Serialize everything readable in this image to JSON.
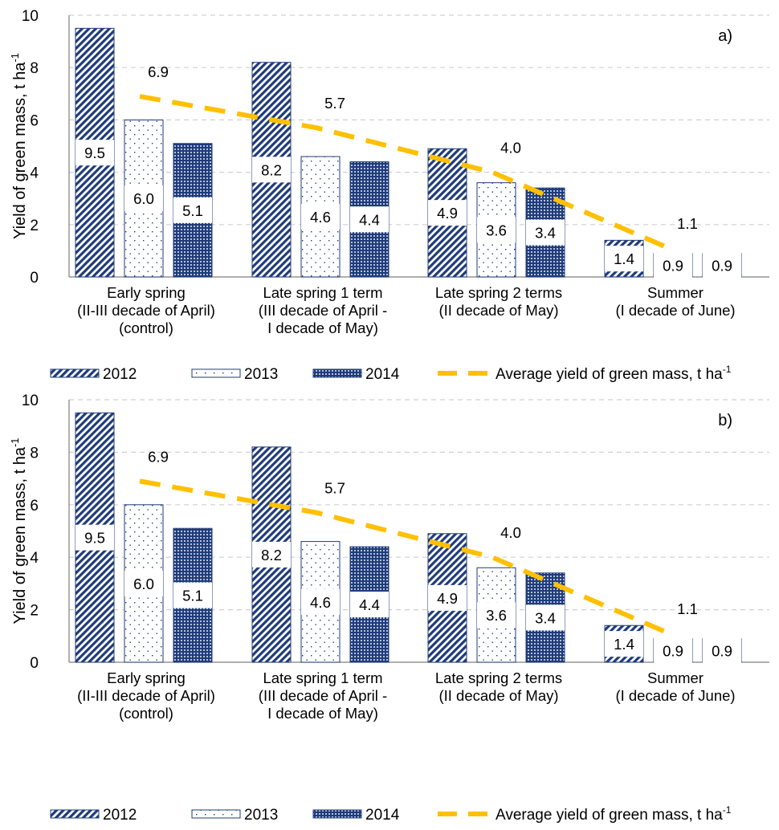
{
  "chart_data": [
    {
      "type": "bar",
      "panel_label": "a)",
      "ylabel": "Yield of green mass, t ha",
      "ylabel_sup": "-1",
      "ylim": [
        0,
        10
      ],
      "yticks": [
        "0",
        "2",
        "4",
        "6",
        "8",
        "10"
      ],
      "grid": true,
      "categories": [
        [
          "Early spring",
          "(II-III decade of April)",
          "(control)"
        ],
        [
          "Late spring 1 term",
          "(III decade of April -",
          "I decade of May)"
        ],
        [
          "Late spring 2 terms",
          "(II decade of May)"
        ],
        [
          "Summer",
          "(I decade of June)"
        ]
      ],
      "series": [
        {
          "name": "2012",
          "values": [
            9.5,
            8.2,
            4.9,
            1.4
          ],
          "labels": [
            "9.5",
            "8.2",
            "4.9",
            "1.4"
          ],
          "pattern": "diagonal",
          "color": "#1f3b7a"
        },
        {
          "name": "2013",
          "values": [
            6.0,
            4.6,
            3.6,
            0.9
          ],
          "labels": [
            "6.0",
            "4.6",
            "3.6",
            "0.9"
          ],
          "pattern": "dots",
          "color": "#1f3b7a"
        },
        {
          "name": "2014",
          "values": [
            5.1,
            4.4,
            3.4,
            0.9
          ],
          "labels": [
            "5.1",
            "4.4",
            "3.4",
            "0.9"
          ],
          "pattern": "grid",
          "color": "#1f3b7a"
        }
      ],
      "line": {
        "name": "Average yield of green mass, t ha",
        "name_sup": "-1",
        "values": [
          6.9,
          5.7,
          4.0,
          1.1
        ],
        "labels": [
          "6.9",
          "5.7",
          "4.0",
          "1.1"
        ],
        "color": "#ffc000",
        "style": "dashed"
      },
      "legend_position": "bottom"
    },
    {
      "type": "bar",
      "panel_label": "b)",
      "ylabel": "Yield of green mass, t ha",
      "ylabel_sup": "-1",
      "ylim": [
        0,
        10
      ],
      "yticks": [
        "0",
        "2",
        "4",
        "6",
        "8",
        "10"
      ],
      "grid": true,
      "categories": [
        [
          "Early spring",
          "(II-III decade of April)",
          "(control)"
        ],
        [
          "Late spring 1 term",
          "(III decade of April -",
          "I decade of May)"
        ],
        [
          "Late spring 2 terms",
          "(II decade of May)"
        ],
        [
          "Summer",
          "(I decade of June)"
        ]
      ],
      "series": [
        {
          "name": "2012",
          "values": [
            9.5,
            8.2,
            4.9,
            1.4
          ],
          "labels": [
            "9.5",
            "8.2",
            "4.9",
            "1.4"
          ],
          "pattern": "diagonal",
          "color": "#1f3b7a"
        },
        {
          "name": "2013",
          "values": [
            6.0,
            4.6,
            3.6,
            0.9
          ],
          "labels": [
            "6.0",
            "4.6",
            "3.6",
            "0.9"
          ],
          "pattern": "dots",
          "color": "#1f3b7a"
        },
        {
          "name": "2014",
          "values": [
            5.1,
            4.4,
            3.4,
            0.9
          ],
          "labels": [
            "5.1",
            "4.4",
            "3.4",
            "0.9"
          ],
          "pattern": "grid",
          "color": "#1f3b7a"
        }
      ],
      "line": {
        "name": "Average yield of green mass, t ha",
        "name_sup": "-1",
        "values": [
          6.9,
          5.7,
          4.0,
          1.1
        ],
        "labels": [
          "6.9",
          "5.7",
          "4.0",
          "1.1"
        ],
        "color": "#ffc000",
        "style": "dashed"
      },
      "legend_position": "bottom"
    }
  ]
}
